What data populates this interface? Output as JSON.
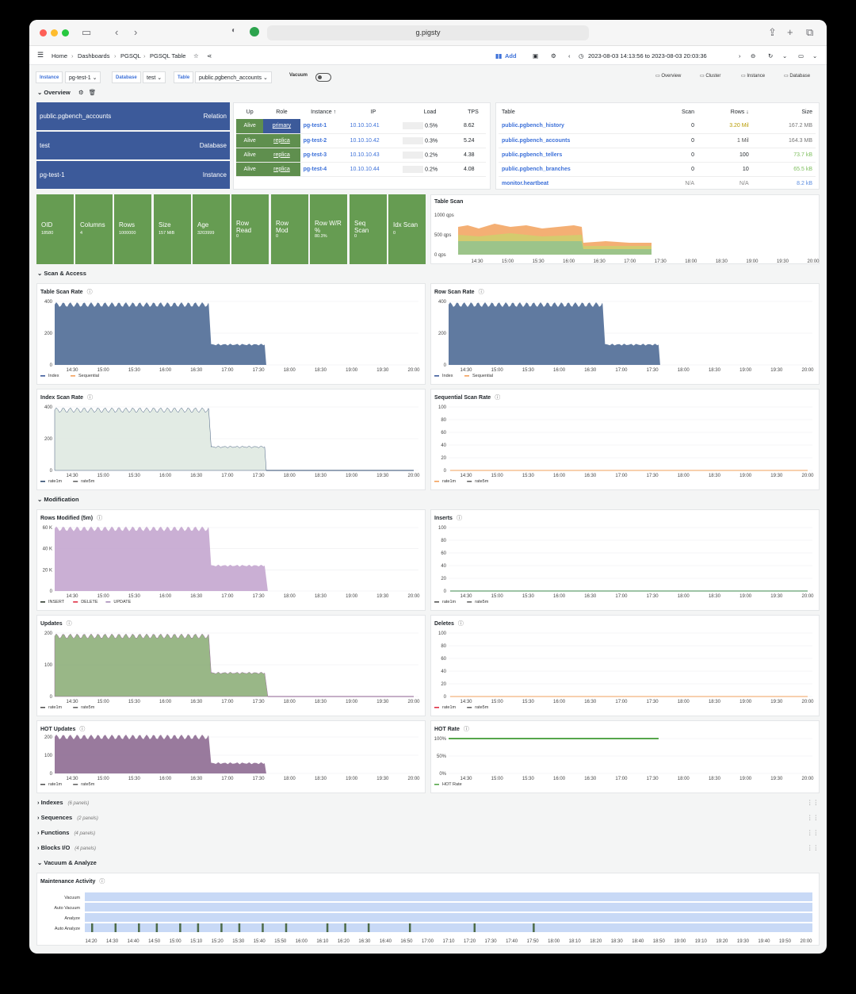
{
  "browser": {
    "url": "g.pigsty"
  },
  "nav": {
    "crumbs": [
      "Home",
      "Dashboards",
      "PGSQL",
      "PGSQL Table"
    ],
    "add_label": "Add",
    "time_range": "2023-08-03 14:13:56 to 2023-08-03 20:03:36"
  },
  "vars": {
    "instance_label": "Instance",
    "instance_value": "pg-test-1",
    "database_label": "Database",
    "database_value": "test",
    "table_label": "Table",
    "table_value": "public.pgbench_accounts",
    "vacuum_label": "Vacuum",
    "links": [
      "Overview",
      "Cluster",
      "Instance",
      "Database"
    ]
  },
  "rows": {
    "overview": "Overview",
    "scan": "Scan & Access",
    "modification": "Modification",
    "indexes": "Indexes",
    "indexes_sub": "(6 panels)",
    "sequences": "Sequences",
    "sequences_sub": "(2 panels)",
    "functions": "Functions",
    "functions_sub": "(4 panels)",
    "blocks": "Blocks I/O",
    "blocks_sub": "(4 panels)",
    "vacuum": "Vacuum & Analyze"
  },
  "overview": {
    "cells": [
      {
        "left": "public.pgbench_accounts",
        "right": "Relation"
      },
      {
        "left": "test",
        "right": "Database"
      },
      {
        "left": "pg-test-1",
        "right": "Instance"
      }
    ]
  },
  "instances": {
    "headers": [
      "Up",
      "Role",
      "Instance ↑",
      "IP",
      "Load",
      "TPS"
    ],
    "rows": [
      {
        "up": "Alive",
        "role": "primary",
        "inst": "pg-test-1",
        "ip": "10.10.10.41",
        "load": "0.5%",
        "tps": "8.62"
      },
      {
        "up": "Alive",
        "role": "replica",
        "inst": "pg-test-2",
        "ip": "10.10.10.42",
        "load": "0.3%",
        "tps": "5.24"
      },
      {
        "up": "Alive",
        "role": "replica",
        "inst": "pg-test-3",
        "ip": "10.10.10.43",
        "load": "0.2%",
        "tps": "4.38"
      },
      {
        "up": "Alive",
        "role": "replica",
        "inst": "pg-test-4",
        "ip": "10.10.10.44",
        "load": "0.2%",
        "tps": "4.08"
      }
    ]
  },
  "tables": {
    "headers": [
      "Table",
      "Scan",
      "Rows ↓",
      "Size"
    ],
    "rows": [
      {
        "name": "public.pgbench_history",
        "scan": "0",
        "rows": "3.20 Mil",
        "size": "167.2 MB"
      },
      {
        "name": "public.pgbench_accounts",
        "scan": "0",
        "rows": "1 Mil",
        "size": "164.3 MB"
      },
      {
        "name": "public.pgbench_tellers",
        "scan": "0",
        "rows": "100",
        "size": "73.7 kB"
      },
      {
        "name": "public.pgbench_branches",
        "scan": "0",
        "rows": "10",
        "size": "65.5 kB"
      },
      {
        "name": "monitor.heartbeat",
        "scan": "N/A",
        "rows": "N/A",
        "size": "8.2 kB"
      }
    ]
  },
  "stats": [
    {
      "t": "OID",
      "v": "18580"
    },
    {
      "t": "Columns",
      "v": "4"
    },
    {
      "t": "Rows",
      "v": "1000000"
    },
    {
      "t": "Size",
      "v": "157 MiB"
    },
    {
      "t": "Age",
      "v": "3203999"
    },
    {
      "t": "Row Read",
      "v": "0"
    },
    {
      "t": "Row Mod",
      "v": "0"
    },
    {
      "t": "Row W/R %",
      "v": "80.3%"
    },
    {
      "t": "Seq Scan",
      "v": "0"
    },
    {
      "t": "Idx Scan",
      "v": "0"
    }
  ],
  "times": [
    "14:30",
    "15:00",
    "15:30",
    "16:00",
    "16:30",
    "17:00",
    "17:30",
    "18:00",
    "18:30",
    "19:00",
    "19:30",
    "20:00"
  ],
  "panels": {
    "table_scan": {
      "title": "Table Scan",
      "yticks": [
        "1000 qps",
        "500 qps",
        "0 qps"
      ]
    },
    "table_scan_rate": {
      "title": "Table Scan Rate",
      "yticks": [
        "400",
        "200",
        "0"
      ],
      "legend": [
        "Index",
        "Sequential"
      ]
    },
    "row_scan_rate": {
      "title": "Row Scan Rate",
      "yticks": [
        "400",
        "200",
        "0"
      ],
      "legend": [
        "Index",
        "Sequential"
      ]
    },
    "index_scan_rate": {
      "title": "Index Scan Rate",
      "yticks": [
        "400",
        "200",
        "0"
      ],
      "legend": [
        "rate1m",
        "rate5m"
      ]
    },
    "seq_scan_rate": {
      "title": "Sequential Scan Rate",
      "yticks": [
        "100",
        "80",
        "60",
        "40",
        "20",
        "0"
      ],
      "legend": [
        "rate1m",
        "rate5m"
      ]
    },
    "rows_modified": {
      "title": "Rows Modified (5m)",
      "yticks": [
        "60 K",
        "40 K",
        "20 K",
        "0"
      ],
      "legend": [
        "INSERT",
        "DELETE",
        "UPDATE"
      ]
    },
    "inserts": {
      "title": "Inserts",
      "yticks": [
        "100",
        "80",
        "60",
        "40",
        "20",
        "0"
      ],
      "legend": [
        "rate1m",
        "rate5m"
      ]
    },
    "updates": {
      "title": "Updates",
      "yticks": [
        "200",
        "100",
        "0"
      ],
      "legend": [
        "rate1m",
        "rate5m"
      ]
    },
    "deletes": {
      "title": "Deletes",
      "yticks": [
        "100",
        "80",
        "60",
        "40",
        "20",
        "0"
      ],
      "legend": [
        "rate1m",
        "rate5m"
      ]
    },
    "hot_updates": {
      "title": "HOT Updates",
      "yticks": [
        "200",
        "100",
        "0"
      ],
      "legend": [
        "rate1m",
        "rate5m"
      ]
    },
    "hot_rate": {
      "title": "HOT Rate",
      "yticks": [
        "100%",
        "50%",
        "0%"
      ],
      "legend": [
        "HOT Rate"
      ]
    },
    "maintenance": {
      "title": "Maintenance Activity",
      "labels": [
        "Vacuum",
        "Auto Vacuum",
        "Analyze",
        "Auto Analyze"
      ],
      "xticks": [
        "14:20",
        "14:30",
        "14:40",
        "14:50",
        "15:00",
        "15:10",
        "15:20",
        "15:30",
        "15:40",
        "15:50",
        "16:00",
        "16:10",
        "16:20",
        "16:30",
        "16:40",
        "16:50",
        "17:00",
        "17:10",
        "17:20",
        "17:30",
        "17:40",
        "17:50",
        "18:00",
        "18:10",
        "18:20",
        "18:30",
        "18:40",
        "18:50",
        "19:00",
        "19:10",
        "19:20",
        "19:30",
        "19:40",
        "19:50",
        "20:00"
      ]
    }
  },
  "colors": {
    "blue": "#3c5a9a",
    "green": "#669c52",
    "purple": "#a68bb8",
    "orange": "#f2a15c"
  }
}
